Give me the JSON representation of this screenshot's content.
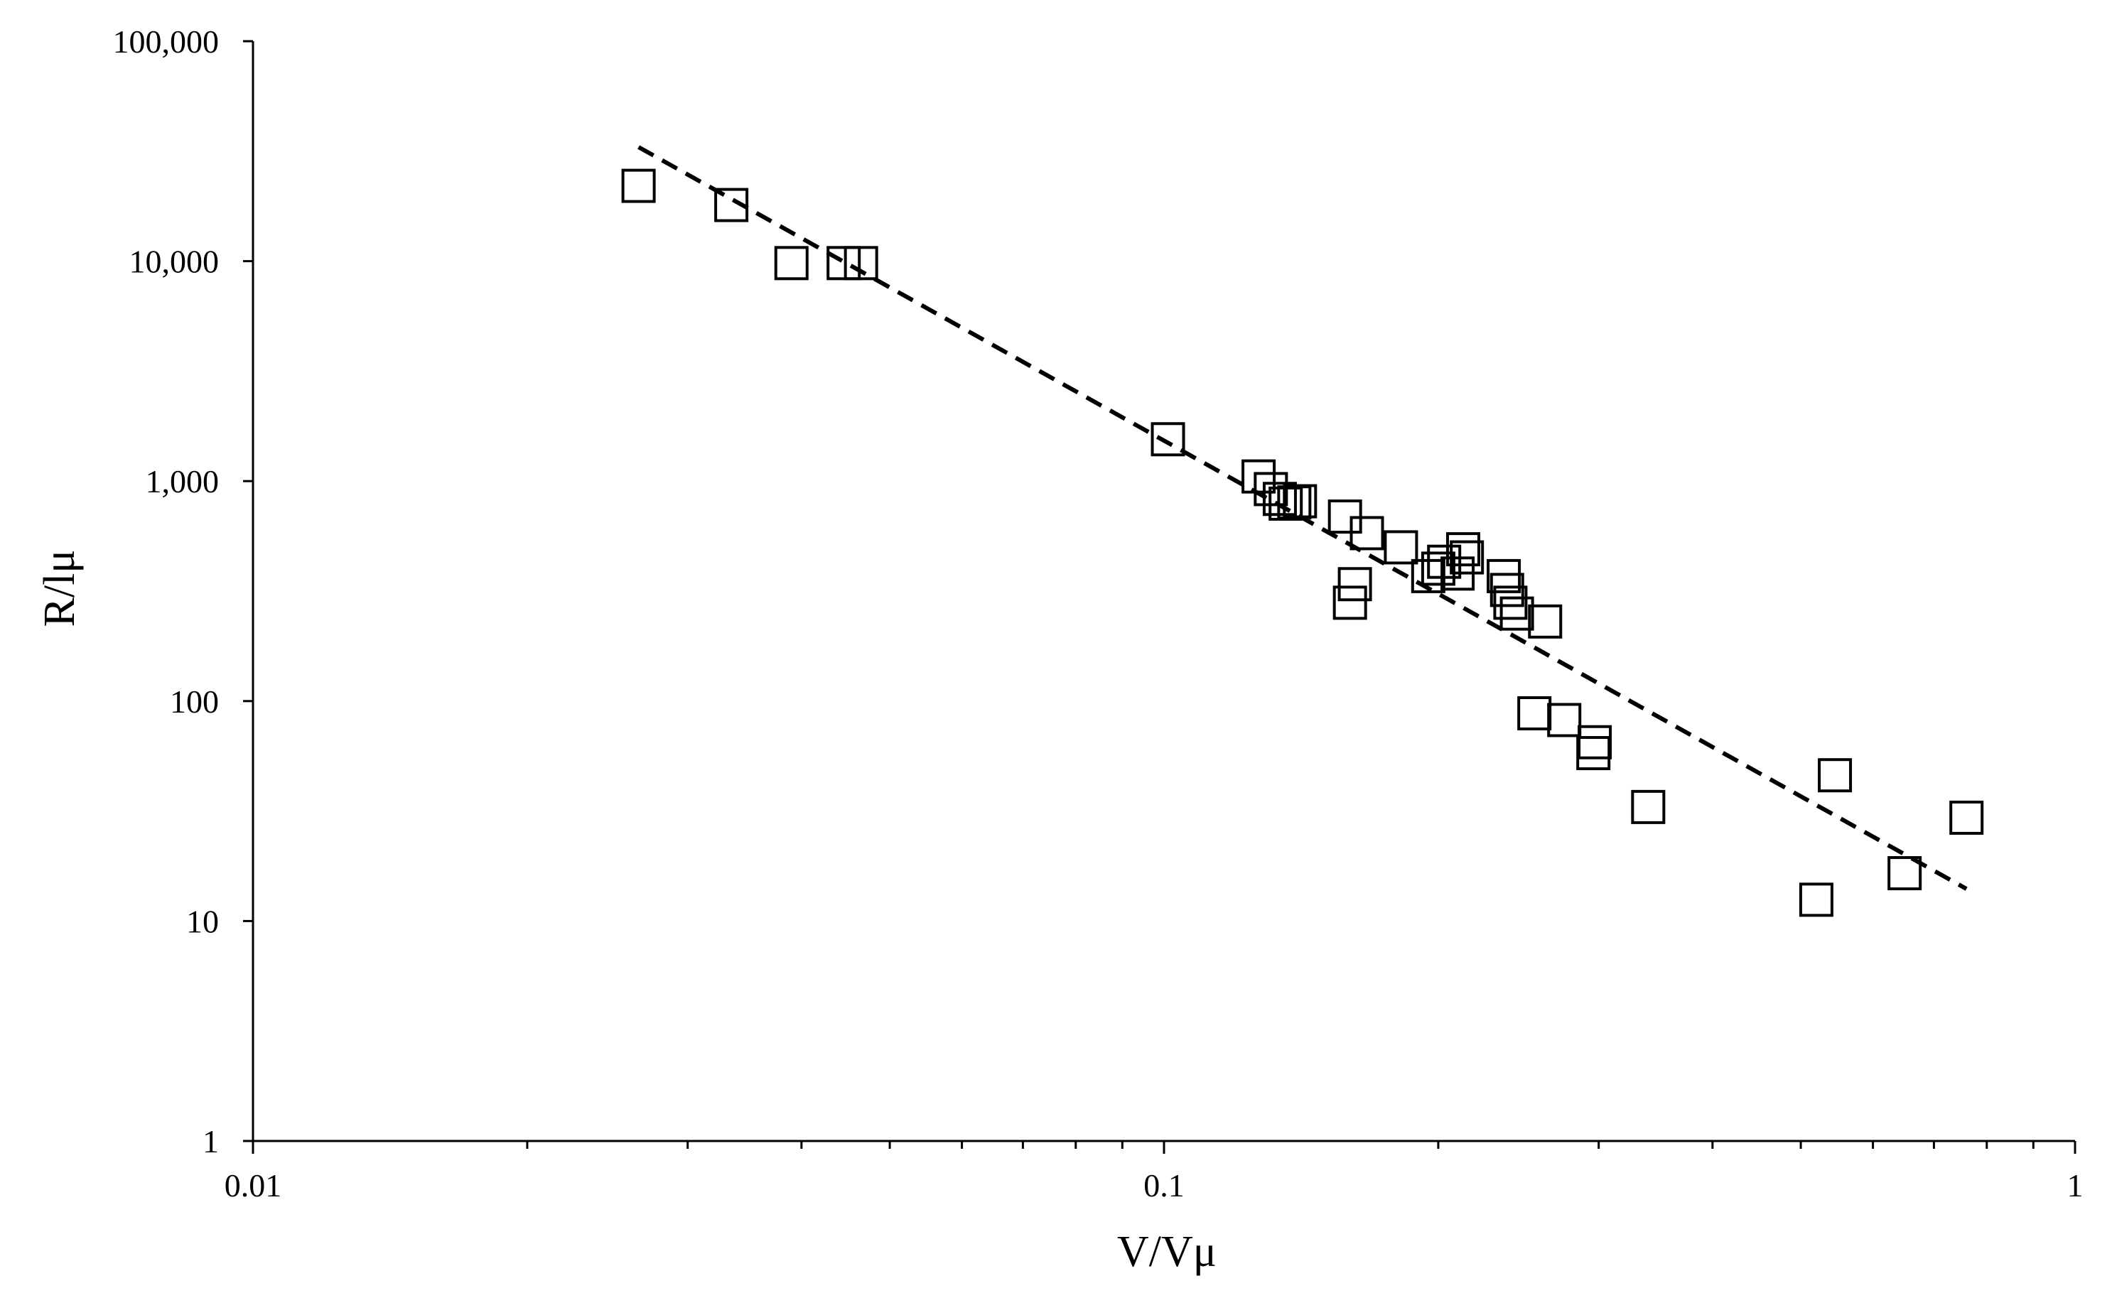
{
  "chart_data": {
    "type": "scatter",
    "title": "",
    "xlabel": "V/Vμ",
    "ylabel": "R/lμ",
    "xscale": "log",
    "yscale": "log",
    "xlim": [
      0.01,
      1
    ],
    "ylim": [
      1,
      100000
    ],
    "x_ticks": [
      "0.01",
      "0.1",
      "1"
    ],
    "y_ticks": [
      "1",
      "10",
      "100",
      "1,000",
      "10,000",
      "100,000"
    ],
    "grid": false,
    "legend": "none",
    "marker": "open-square",
    "marker_color": "#000000",
    "series": [
      {
        "points": [
          [
            0.0265,
            22000
          ],
          [
            0.0335,
            18000
          ],
          [
            0.039,
            9800
          ],
          [
            0.0445,
            9800
          ],
          [
            0.0465,
            9800
          ],
          [
            0.101,
            1550
          ],
          [
            0.127,
            1050
          ],
          [
            0.131,
            920
          ],
          [
            0.134,
            830
          ],
          [
            0.136,
            790
          ],
          [
            0.139,
            800
          ],
          [
            0.141,
            810
          ],
          [
            0.158,
            690
          ],
          [
            0.16,
            280
          ],
          [
            0.162,
            340
          ],
          [
            0.167,
            580
          ],
          [
            0.182,
            500
          ],
          [
            0.195,
            370
          ],
          [
            0.2,
            400
          ],
          [
            0.203,
            430
          ],
          [
            0.21,
            380
          ],
          [
            0.213,
            490
          ],
          [
            0.215,
            450
          ],
          [
            0.236,
            370
          ],
          [
            0.238,
            320
          ],
          [
            0.24,
            280
          ],
          [
            0.244,
            250
          ],
          [
            0.255,
            88
          ],
          [
            0.262,
            230
          ],
          [
            0.275,
            82
          ],
          [
            0.296,
            58
          ],
          [
            0.297,
            65
          ],
          [
            0.34,
            33
          ],
          [
            0.52,
            12.5
          ],
          [
            0.545,
            46
          ],
          [
            0.65,
            16.5
          ],
          [
            0.76,
            29.5
          ]
        ]
      }
    ],
    "trendline": {
      "style": "dashed",
      "color": "#000000",
      "points": [
        [
          0.0265,
          33000
        ],
        [
          0.76,
          14
        ]
      ]
    }
  }
}
